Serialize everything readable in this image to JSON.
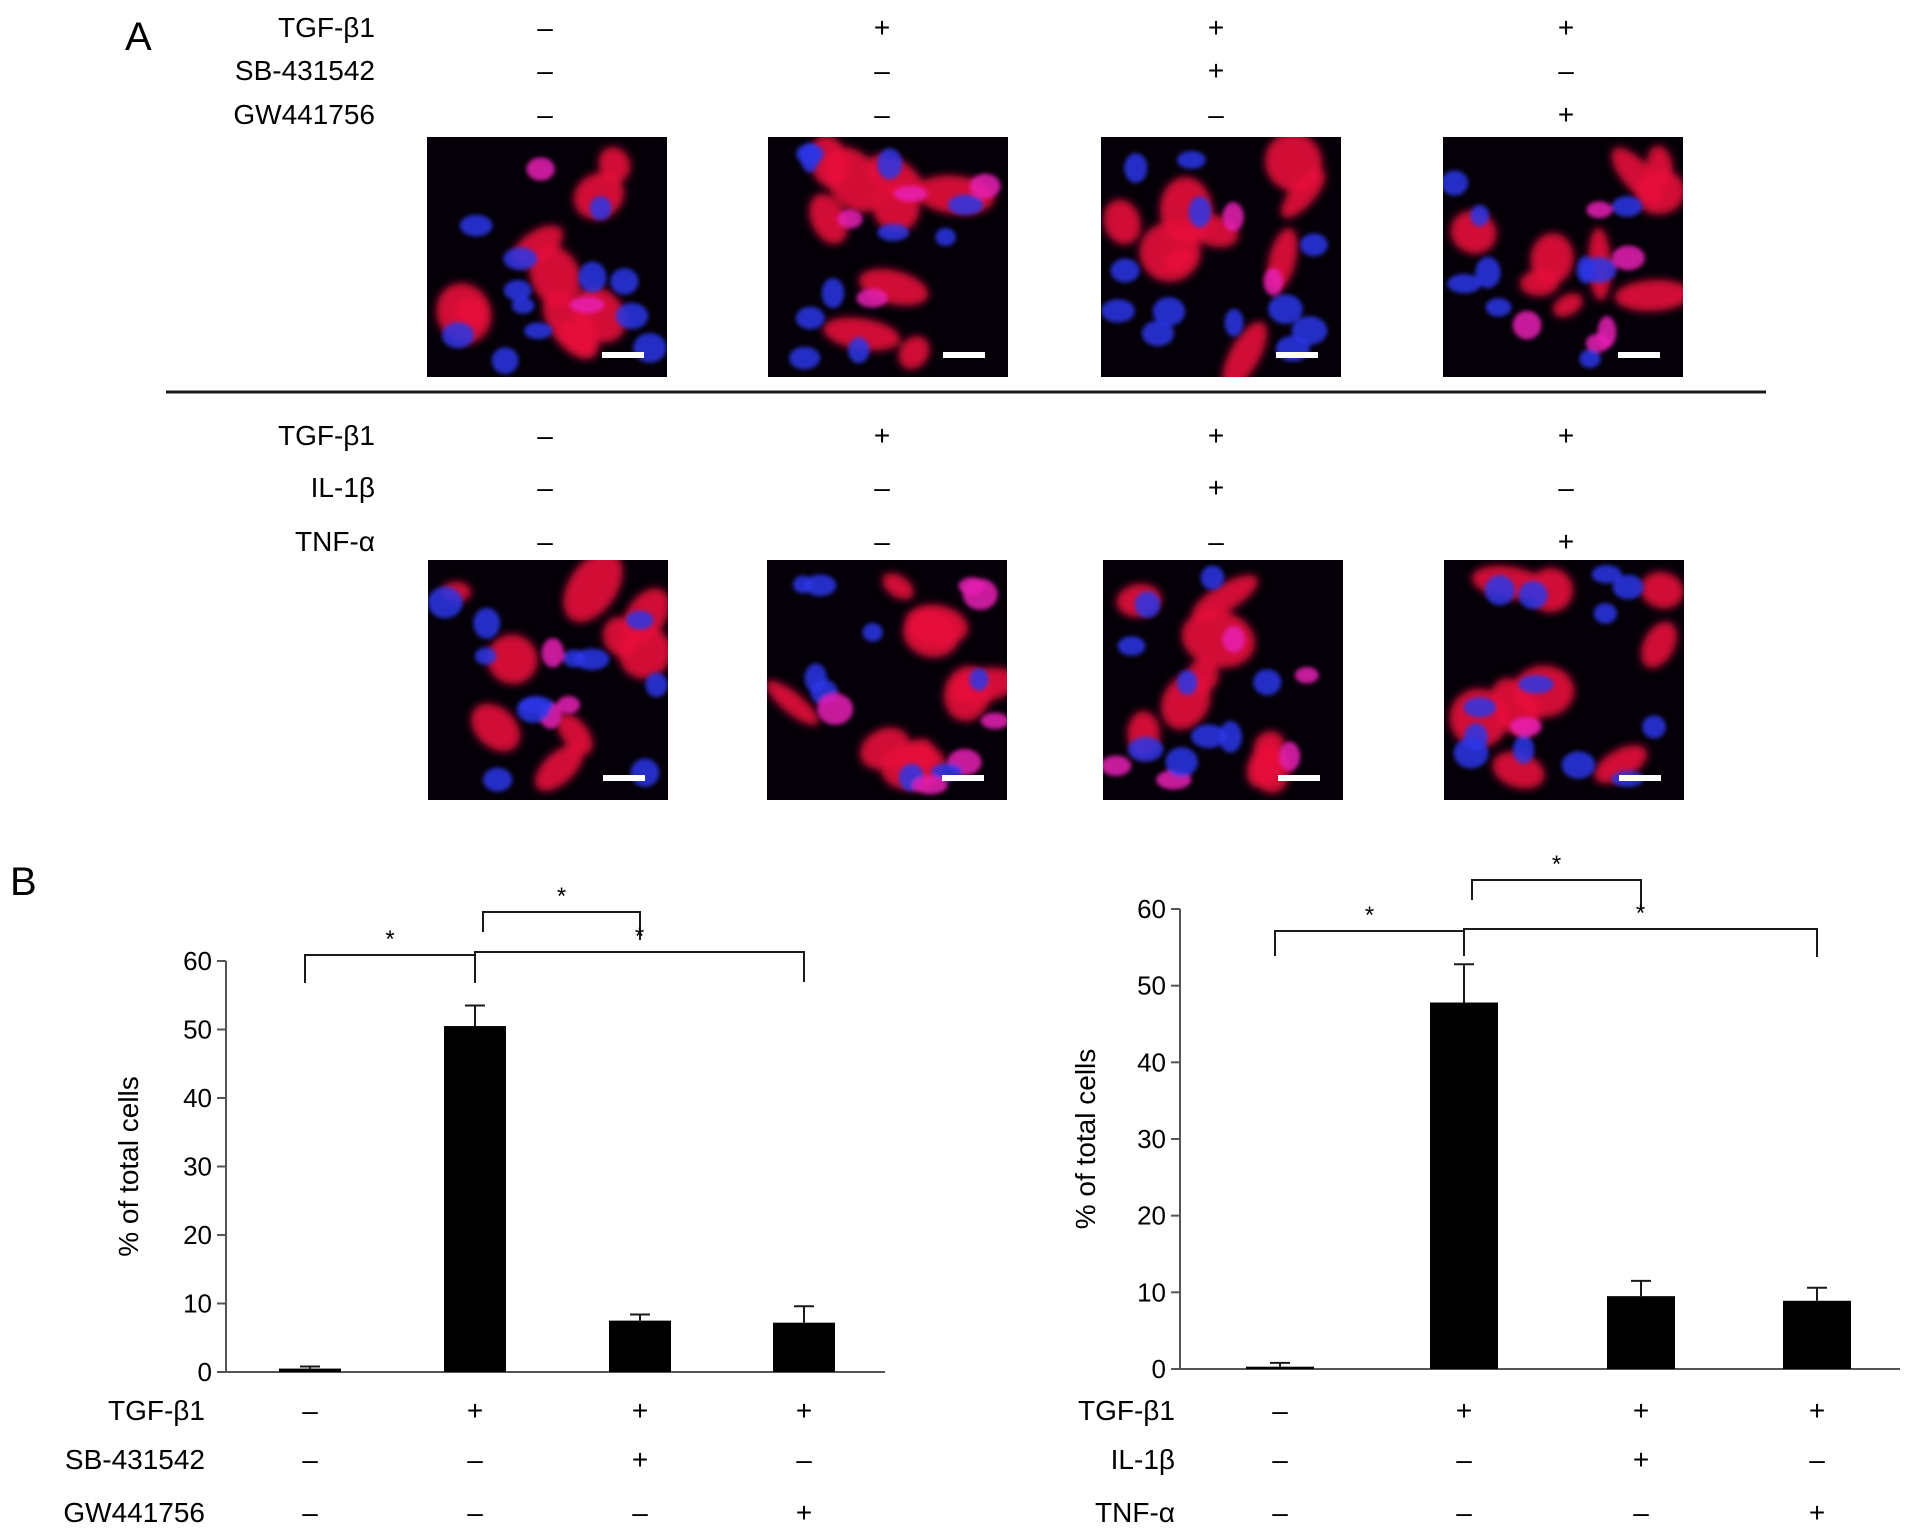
{
  "panel_a": {
    "letter": "A",
    "top": {
      "rows": [
        {
          "label": "TGF-β1",
          "signs": [
            "–",
            "+",
            "+",
            "+"
          ]
        },
        {
          "label": "SB-431542",
          "signs": [
            "–",
            "–",
            "+",
            "–"
          ]
        },
        {
          "label": "GW441756",
          "signs": [
            "–",
            "–",
            "–",
            "+"
          ]
        }
      ],
      "images": [
        "fluorescence-micrograph",
        "fluorescence-micrograph",
        "fluorescence-micrograph",
        "fluorescence-micrograph"
      ]
    },
    "bottom": {
      "rows": [
        {
          "label": "TGF-β1",
          "signs": [
            "–",
            "+",
            "+",
            "+"
          ]
        },
        {
          "label": "IL-1β",
          "signs": [
            "–",
            "–",
            "+",
            "–"
          ]
        },
        {
          "label": "TNF-α",
          "signs": [
            "–",
            "–",
            "–",
            "+"
          ]
        }
      ],
      "images": [
        "fluorescence-micrograph",
        "fluorescence-micrograph",
        "fluorescence-micrograph",
        "fluorescence-micrograph"
      ]
    },
    "colors": {
      "background": "#050008",
      "cytoplasm": "#e8103a",
      "nucleus": "#2a35e8",
      "overlap": "#e81cb4",
      "scale_bar": "#ffffff"
    }
  },
  "panel_b": {
    "letter": "B"
  },
  "chart_data": [
    {
      "type": "bar",
      "title": "",
      "xlabel": "",
      "ylabel": "% of total cells",
      "ylim": [
        0,
        60
      ],
      "yticks": [
        0,
        10,
        20,
        30,
        40,
        50,
        60
      ],
      "grid": false,
      "categories": [
        "1",
        "2",
        "3",
        "4"
      ],
      "values": [
        0.5,
        50.5,
        7.5,
        7.2
      ],
      "errors": [
        0.3,
        3.0,
        0.9,
        2.4
      ],
      "bar_color": "#000000",
      "condition_rows": [
        {
          "label": "TGF-β1",
          "signs": [
            "–",
            "+",
            "+",
            "+"
          ]
        },
        {
          "label": "SB-431542",
          "signs": [
            "–",
            "–",
            "+",
            "–"
          ]
        },
        {
          "label": "GW441756",
          "signs": [
            "–",
            "–",
            "–",
            "+"
          ]
        }
      ],
      "significance": [
        {
          "from": 0,
          "to": 1,
          "label": "*"
        },
        {
          "from": 1,
          "to": 2,
          "label": "*"
        },
        {
          "from": 1,
          "to": 3,
          "label": "*"
        }
      ]
    },
    {
      "type": "bar",
      "title": "",
      "xlabel": "",
      "ylabel": "% of total cells",
      "ylim": [
        0,
        60
      ],
      "yticks": [
        0,
        10,
        20,
        30,
        40,
        50,
        60
      ],
      "grid": false,
      "categories": [
        "1",
        "2",
        "3",
        "4"
      ],
      "values": [
        0.3,
        47.8,
        9.5,
        8.9
      ],
      "errors": [
        0.5,
        5.0,
        2.0,
        1.7
      ],
      "bar_color": "#000000",
      "condition_rows": [
        {
          "label": "TGF-β1",
          "signs": [
            "–",
            "+",
            "+",
            "+"
          ]
        },
        {
          "label": "IL-1β",
          "signs": [
            "–",
            "–",
            "+",
            "–"
          ]
        },
        {
          "label": "TNF-α",
          "signs": [
            "–",
            "–",
            "–",
            "+"
          ]
        }
      ],
      "significance": [
        {
          "from": 0,
          "to": 1,
          "label": "*"
        },
        {
          "from": 1,
          "to": 2,
          "label": "*"
        },
        {
          "from": 1,
          "to": 3,
          "label": "*"
        }
      ]
    }
  ]
}
